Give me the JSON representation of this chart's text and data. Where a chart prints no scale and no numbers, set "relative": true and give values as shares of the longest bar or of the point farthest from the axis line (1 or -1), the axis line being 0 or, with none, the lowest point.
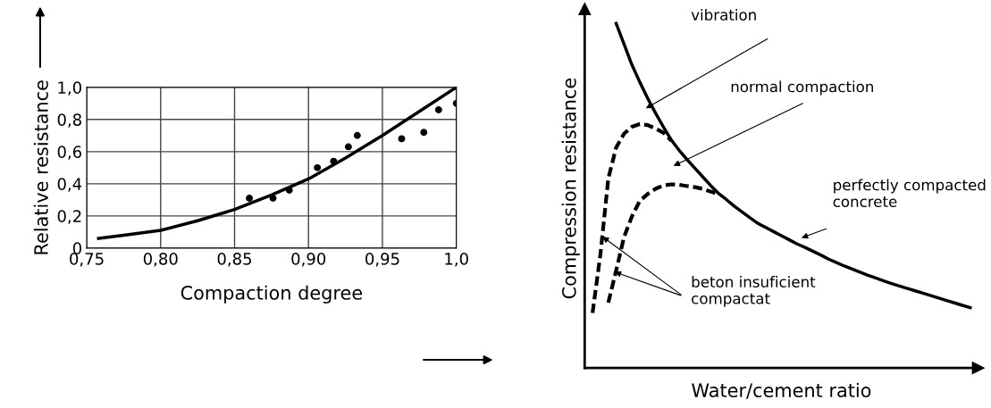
{
  "chart_data": [
    {
      "type": "line",
      "xlabel": "Compaction degree",
      "ylabel": "Relative resistance",
      "grid": true,
      "xlim": [
        0.75,
        1.0
      ],
      "ylim": [
        0,
        1.0
      ],
      "xticks": [
        {
          "value": 0.75,
          "label": "0,75"
        },
        {
          "value": 0.8,
          "label": "0,80"
        },
        {
          "value": 0.85,
          "label": "0,85"
        },
        {
          "value": 0.9,
          "label": "0,90"
        },
        {
          "value": 0.95,
          "label": "0,95"
        },
        {
          "value": 1.0,
          "label": "1,0"
        }
      ],
      "yticks": [
        0,
        {
          "value": 0.2,
          "label": "0,2"
        },
        {
          "value": 0.4,
          "label": "0,4"
        },
        {
          "value": 0.6,
          "label": "0,6"
        },
        {
          "value": 0.8,
          "label": "0,8"
        },
        {
          "value": 1.0,
          "label": "1,0"
        }
      ],
      "series": [
        {
          "color": "#000000",
          "marker": "none",
          "line_style": "solid",
          "x": [
            0.758,
            0.775,
            0.8,
            0.825,
            0.85,
            0.875,
            0.9,
            0.925,
            0.95,
            0.975,
            1.0
          ],
          "values": [
            0.06,
            0.08,
            0.11,
            0.17,
            0.24,
            0.33,
            0.43,
            0.56,
            0.7,
            0.85,
            1.0
          ]
        },
        {
          "type": "scatter",
          "color": "#000000",
          "marker": "circle",
          "x": [
            0.86,
            0.876,
            0.887,
            0.906,
            0.917,
            0.927,
            0.933,
            0.963,
            0.978,
            0.988,
            1.0
          ],
          "values": [
            0.31,
            0.31,
            0.36,
            0.5,
            0.54,
            0.63,
            0.7,
            0.68,
            0.72,
            0.86,
            0.9
          ]
        }
      ]
    },
    {
      "type": "line",
      "relative": true,
      "xlabel": "Water/cement ratio",
      "ylabel": "Compression resistance",
      "tick_labels": false,
      "categories": [
        null,
        null,
        null,
        null,
        null,
        null,
        null,
        null,
        null,
        null,
        null,
        null,
        null,
        null,
        null,
        null,
        null,
        null,
        null,
        null,
        null,
        null,
        null,
        null,
        null,
        null,
        null,
        null,
        null,
        null,
        null,
        null,
        null,
        null,
        null,
        null,
        null,
        null,
        null,
        null,
        null,
        null,
        null,
        null,
        null,
        null,
        null,
        null,
        null,
        null,
        null
      ],
      "series": [
        {
          "color": "#000000",
          "line_style": "solid",
          "values": [
            null,
            null,
            null,
            null,
            1.0,
            0.94,
            0.88,
            0.83,
            0.783,
            0.74,
            0.7,
            0.662,
            0.632,
            0.605,
            0.58,
            0.555,
            0.53,
            0.507,
            0.489,
            0.47,
            0.453,
            0.436,
            0.42,
            0.408,
            0.396,
            0.384,
            0.372,
            0.36,
            0.35,
            0.339,
            0.328,
            0.316,
            0.306,
            0.296,
            0.287,
            0.278,
            0.269,
            0.261,
            0.253,
            0.245,
            0.238,
            0.231,
            0.224,
            0.217,
            0.21,
            0.203,
            0.196,
            0.189,
            0.182,
            0.175,
            null
          ]
        },
        {
          "color": "#000000",
          "line_style": "dashed",
          "values": [
            null,
            0.16,
            0.33,
            0.55,
            0.64,
            0.68,
            0.7,
            0.708,
            0.705,
            0.695,
            0.683,
            0.66,
            null,
            null,
            null,
            null,
            null,
            null,
            null,
            null,
            null,
            null,
            null,
            null,
            null,
            null,
            null,
            null,
            null,
            null,
            null,
            null,
            null,
            null,
            null,
            null,
            null,
            null,
            null,
            null,
            null,
            null,
            null,
            null,
            null,
            null,
            null,
            null,
            null,
            null,
            null
          ]
        },
        {
          "color": "#000000",
          "line_style": "dashed",
          "values": [
            null,
            null,
            null,
            0.19,
            0.283,
            0.38,
            0.44,
            0.485,
            0.505,
            0.52,
            0.53,
            0.533,
            0.532,
            0.528,
            0.525,
            0.52,
            0.512,
            0.505,
            null,
            null,
            null,
            null,
            null,
            null,
            null,
            null,
            null,
            null,
            null,
            null,
            null,
            null,
            null,
            null,
            null,
            null,
            null,
            null,
            null,
            null,
            null,
            null,
            null,
            null,
            null,
            null,
            null,
            null,
            null,
            null,
            null
          ]
        }
      ],
      "annotations": [
        "vibration",
        "normal compaction",
        "perfectly compacted\nconcrete",
        "beton insuficient\ncompactat"
      ]
    }
  ]
}
